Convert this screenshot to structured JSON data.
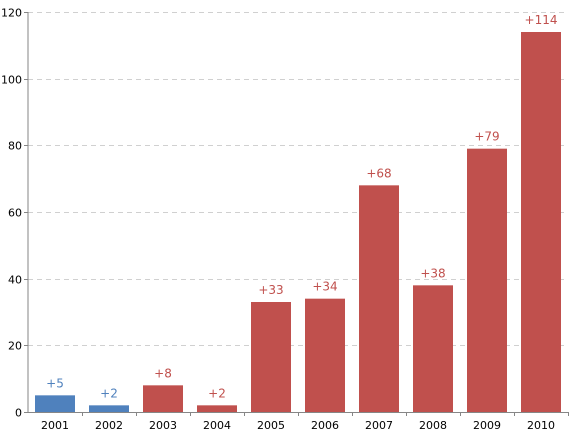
{
  "chart_data": {
    "type": "bar",
    "title": "",
    "xlabel": "",
    "ylabel": "",
    "categories": [
      "2001",
      "2002",
      "2003",
      "2004",
      "2005",
      "2006",
      "2007",
      "2008",
      "2009",
      "2010"
    ],
    "values": [
      5,
      2,
      8,
      2,
      33,
      34,
      68,
      38,
      79,
      114
    ],
    "data_labels": [
      "+5",
      "+2",
      "+8",
      "+2",
      "+33",
      "+34",
      "+68",
      "+38",
      "+79",
      "+114"
    ],
    "bar_colors": [
      "#4f81bd",
      "#4f81bd",
      "#c0504d",
      "#c0504d",
      "#c0504d",
      "#c0504d",
      "#c0504d",
      "#c0504d",
      "#c0504d",
      "#c0504d"
    ],
    "label_colors": [
      "#4f81bd",
      "#4f81bd",
      "#c0504d",
      "#c0504d",
      "#c0504d",
      "#c0504d",
      "#c0504d",
      "#c0504d",
      "#c0504d",
      "#c0504d"
    ],
    "ylim": [
      0,
      120
    ],
    "yticks": [
      0,
      20,
      40,
      60,
      80,
      100,
      120
    ],
    "grid": true,
    "legend": "none"
  }
}
